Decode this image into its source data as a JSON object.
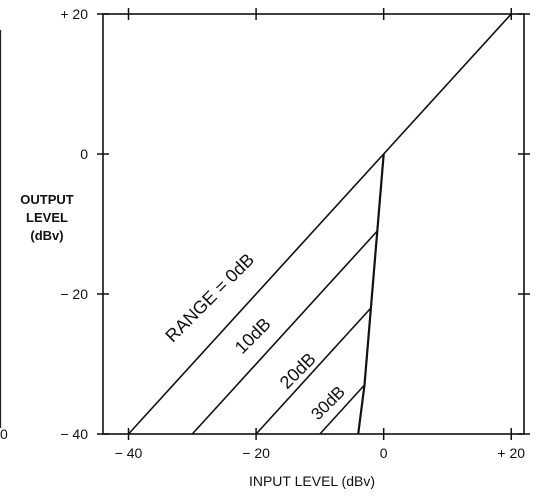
{
  "chart_data": {
    "type": "line",
    "title": "",
    "xlabel": "INPUT LEVEL (dBv)",
    "ylabel": [
      "OUTPUT",
      "LEVEL",
      "(dBv)"
    ],
    "xlim": [
      -44,
      22
    ],
    "ylim": [
      -40,
      20
    ],
    "x_ticks": [
      {
        "value": -40,
        "label": "− 40"
      },
      {
        "value": -20,
        "label": "− 20"
      },
      {
        "value": 0,
        "label": "0"
      },
      {
        "value": 20,
        "label": "+ 20"
      }
    ],
    "y_ticks": [
      {
        "value": 20,
        "label": "+ 20"
      },
      {
        "value": 0,
        "label": "0"
      },
      {
        "value": -20,
        "label": "− 20"
      },
      {
        "value": -40,
        "label": "− 40"
      }
    ],
    "left_edge_labels": [
      {
        "y": -40,
        "label": "0"
      }
    ],
    "grid": false,
    "series": [
      {
        "name": "RANGE = 0dB",
        "x": [
          -40,
          20
        ],
        "y": [
          -40,
          20
        ]
      },
      {
        "name": "10dB",
        "x": [
          -30,
          -1
        ],
        "y": [
          -40,
          -11
        ]
      },
      {
        "name": "20dB",
        "x": [
          -20,
          -2
        ],
        "y": [
          -40,
          -22
        ]
      },
      {
        "name": "30dB",
        "x": [
          -10,
          -3
        ],
        "y": [
          -40,
          -33
        ]
      },
      {
        "name": "",
        "x": [
          -4,
          -3,
          -2,
          -1,
          0
        ],
        "y": [
          -40,
          -33,
          -22,
          -11,
          0
        ]
      }
    ]
  }
}
